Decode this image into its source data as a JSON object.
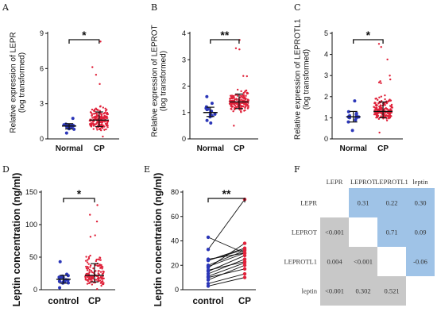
{
  "panels": {
    "A": {
      "label": "A",
      "ylabel_lines": [
        "Relative expression of LEPR",
        "(log transformed)"
      ],
      "significance": "*"
    },
    "B": {
      "label": "B",
      "ylabel_lines": [
        "Relative expression of LEPROT",
        "(log transformed)"
      ],
      "significance": "**"
    },
    "C": {
      "label": "C",
      "ylabel_lines": [
        "Relative expression of LEPROTL1",
        "(log transformed)"
      ],
      "significance": "*"
    },
    "D": {
      "label": "D",
      "ylabel": "Leptin concentration (ng/ml)",
      "significance": "*"
    },
    "E": {
      "label": "E",
      "ylabel": "Leptin concentration (ng/ml)",
      "significance": "**"
    },
    "F": {
      "label": "F"
    }
  },
  "colors": {
    "group1": "#2b36b8",
    "group2": "#e0223a",
    "matrix_blue": "#9fc3e7",
    "matrix_gray": "#c8c8c8"
  },
  "chart_data": [
    {
      "panel": "A",
      "type": "scatter",
      "categories": [
        "Normal",
        "CP"
      ],
      "ylim": [
        0,
        9
      ],
      "yticks": [
        0,
        3,
        6,
        9
      ],
      "groups": [
        {
          "category": "Normal",
          "n": 18,
          "median": 1.1,
          "q1": 0.85,
          "q3": 1.3,
          "range": [
            0.5,
            1.75
          ]
        },
        {
          "category": "CP",
          "n": 180,
          "median": 1.6,
          "q1": 1.05,
          "q3": 2.3,
          "range": [
            0.2,
            8.3
          ]
        }
      ]
    },
    {
      "panel": "B",
      "type": "scatter",
      "categories": [
        "Normal",
        "CP"
      ],
      "ylim": [
        0,
        4
      ],
      "yticks": [
        0,
        1,
        2,
        3,
        4
      ],
      "groups": [
        {
          "category": "Normal",
          "n": 16,
          "median": 1.0,
          "q1": 0.85,
          "q3": 1.2,
          "range": [
            0.6,
            1.6
          ]
        },
        {
          "category": "CP",
          "n": 180,
          "median": 1.4,
          "q1": 1.15,
          "q3": 1.7,
          "range": [
            0.5,
            3.75
          ]
        }
      ]
    },
    {
      "panel": "C",
      "type": "scatter",
      "categories": [
        "Normal",
        "CP"
      ],
      "ylim": [
        0,
        5
      ],
      "yticks": [
        0,
        1,
        2,
        3,
        4,
        5
      ],
      "groups": [
        {
          "category": "Normal",
          "n": 16,
          "median": 1.05,
          "q1": 0.8,
          "q3": 1.3,
          "range": [
            0.4,
            1.8
          ]
        },
        {
          "category": "CP",
          "n": 180,
          "median": 1.3,
          "q1": 1.0,
          "q3": 1.75,
          "range": [
            0.3,
            4.5
          ]
        }
      ]
    },
    {
      "panel": "D",
      "type": "scatter",
      "categories": [
        "control",
        "CP"
      ],
      "ylim": [
        0,
        150
      ],
      "yticks": [
        0,
        50,
        100,
        150
      ],
      "groups": [
        {
          "category": "control",
          "n": 20,
          "median": 16,
          "q1": 10,
          "q3": 22,
          "range": [
            3,
            43
          ]
        },
        {
          "category": "CP",
          "n": 150,
          "median": 22,
          "q1": 12,
          "q3": 40,
          "range": [
            1,
            130
          ]
        }
      ]
    },
    {
      "panel": "E",
      "type": "line",
      "categories": [
        "control",
        "CP"
      ],
      "ylim": [
        0,
        80
      ],
      "yticks": [
        0,
        20,
        40,
        60,
        80
      ],
      "series": [
        {
          "values": [
            43,
            30
          ]
        },
        {
          "values": [
            33,
            74
          ]
        },
        {
          "values": [
            25,
            30
          ]
        },
        {
          "values": [
            24,
            33
          ]
        },
        {
          "values": [
            24,
            34
          ]
        },
        {
          "values": [
            20,
            32
          ]
        },
        {
          "values": [
            19,
            30
          ]
        },
        {
          "values": [
            18,
            38
          ]
        },
        {
          "values": [
            16,
            23
          ]
        },
        {
          "values": [
            15,
            28
          ]
        },
        {
          "values": [
            13,
            25
          ]
        },
        {
          "values": [
            11,
            22
          ]
        },
        {
          "values": [
            10,
            17
          ]
        },
        {
          "values": [
            8,
            20
          ]
        },
        {
          "values": [
            5,
            13
          ]
        },
        {
          "values": [
            3,
            10
          ]
        }
      ]
    },
    {
      "panel": "F",
      "type": "table",
      "columns": [
        "LEPR",
        "LEPROT",
        "LEPROTL1",
        "leptin"
      ],
      "rows": [
        "LEPR",
        "LEPROT",
        "LEPROTL1",
        "leptin"
      ],
      "cells": [
        [
          "",
          "0.31",
          "0.22",
          "0.30"
        ],
        [
          "<0.001",
          "",
          "0.71",
          "0.09"
        ],
        [
          "0.004",
          "<0.001",
          "",
          "-0.06"
        ],
        [
          "<0.001",
          "0.302",
          "0.521",
          ""
        ]
      ],
      "upper_triangle": "correlation coefficients",
      "lower_triangle": "p values"
    }
  ]
}
